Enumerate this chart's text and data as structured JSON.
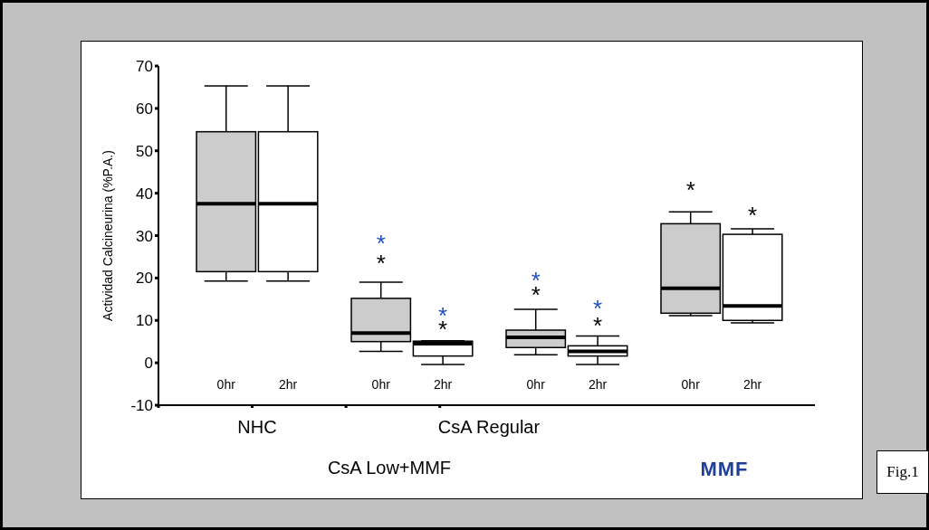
{
  "chart_data": {
    "type": "box",
    "ylabel": "Actividad Calcineurina  (%P.A.)",
    "categories": [
      "0hr",
      "2hr",
      "0hr",
      "2hr",
      "0hr",
      "2hr",
      "0hr",
      "2hr"
    ],
    "colors": [
      "#cccccc",
      "#ffffff",
      "#cccccc",
      "#ffffff",
      "#cccccc",
      "#ffffff",
      "#cccccc",
      "#ffffff"
    ],
    "boxes": [
      {
        "low": 19.3,
        "q1": 21.5,
        "median": 37.5,
        "q3": 54.5,
        "high": 65.3
      },
      {
        "low": 19.3,
        "q1": 21.5,
        "median": 37.5,
        "q3": 54.5,
        "high": 65.3
      },
      {
        "low": 2.7,
        "q1": 5,
        "median": 7,
        "q3": 15.2,
        "high": 19
      },
      {
        "low": -0.4,
        "q1": 1.6,
        "median": 4.5,
        "q3": 5.1,
        "high": 5.2
      },
      {
        "low": 1.9,
        "q1": 3.6,
        "median": 6,
        "q3": 7.7,
        "high": 12.6
      },
      {
        "low": -0.4,
        "q1": 1.6,
        "median": 2.7,
        "q3": 4,
        "high": 6.3
      },
      {
        "low": 11.1,
        "q1": 11.7,
        "median": 17.6,
        "q3": 32.8,
        "high": 35.6
      },
      {
        "low": 9.4,
        "q1": 10,
        "median": 13.4,
        "q3": 30.3,
        "high": 31.6
      }
    ],
    "ylim": [
      -10,
      70
    ],
    "yticks": [
      -10,
      0,
      10,
      20,
      30,
      40,
      50,
      60,
      70
    ],
    "annotations": [
      "NHC",
      "CsA Regular",
      "CsA Low+MMF",
      "MMF",
      "*",
      "*",
      "*",
      "*",
      "*",
      "*",
      "*",
      "*",
      "*",
      "*",
      "Fig.1"
    ]
  }
}
